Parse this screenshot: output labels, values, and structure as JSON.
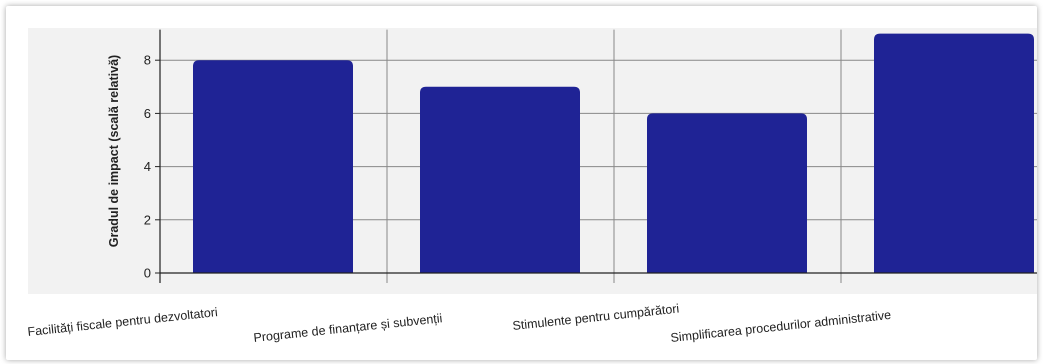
{
  "chart_data": {
    "type": "bar",
    "categories": [
      "Facilități fiscale pentru dezvoltatori",
      "Programe de finanțare și subvenții",
      "Stimulente pentru cumpărători",
      "Simplificarea procedurilor administrative"
    ],
    "values": [
      8,
      7,
      6,
      9
    ],
    "title": "",
    "xlabel": "",
    "ylabel": "Gradul de impact (scală relativă)",
    "ylim": [
      0,
      9
    ],
    "yticks": [
      0,
      2,
      4,
      6,
      8
    ],
    "grid": true,
    "legend": "none",
    "colors": {
      "bar": "#1f2395",
      "plot_background": "#f2f2f2",
      "grid": "#888888",
      "axis": "#222222"
    }
  }
}
